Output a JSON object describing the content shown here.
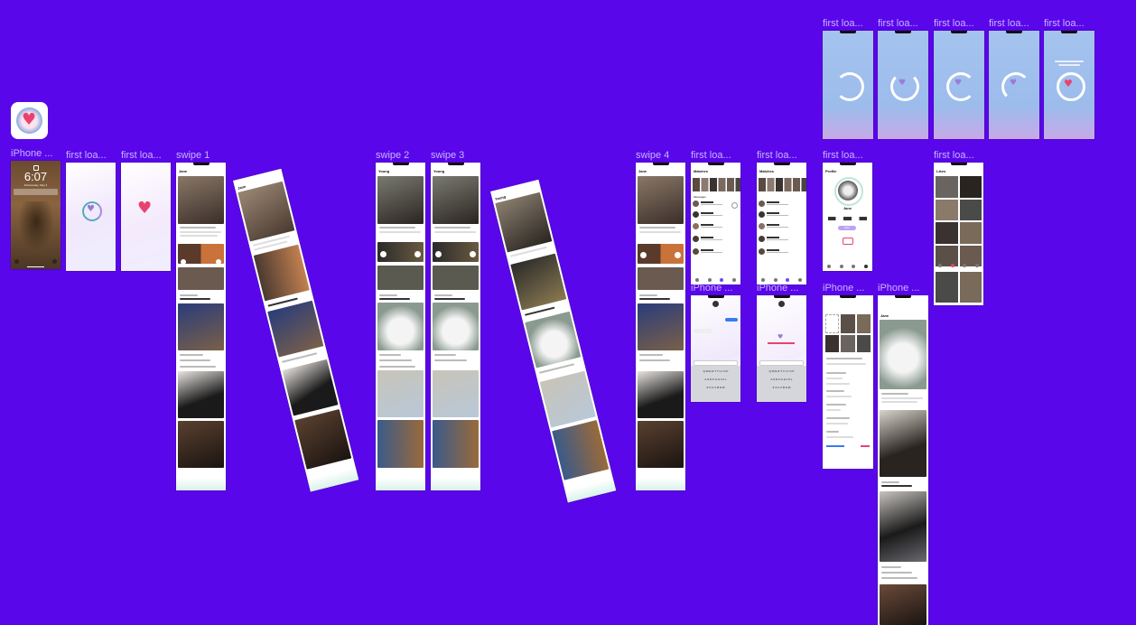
{
  "canvas": {
    "background": "#5a06ea",
    "label_color": "#c9b6ff"
  },
  "app_icon": {
    "name": "heart-app-icon",
    "glyph": "♥"
  },
  "labels": {
    "iphone_lock": "iPhone ...",
    "first_load_1": "first loa...",
    "first_load_2": "first loa...",
    "swipe_1": "swipe 1",
    "swipe_2": "swipe 2",
    "swipe_3": "swipe 3",
    "swipe_4": "swipe 4",
    "matches_1": "first loa...",
    "matches_2": "first loa...",
    "profile_frame": "first loa...",
    "likes_frame": "first loa...",
    "top_1": "first loa...",
    "top_2": "first loa...",
    "top_3": "first loa...",
    "top_4": "first loa...",
    "top_5": "first loa...",
    "chat_1": "iPhone ...",
    "chat_2": "iPhone ...",
    "settings_frame": "iPhone ...",
    "detail_frame": "iPhone ..."
  },
  "lockscreen": {
    "time": "6:07",
    "date": "Wednesday, May 3"
  },
  "swipe_screens": {
    "swipe_1_title": "Jane",
    "swipe_2_title": "Young",
    "swipe_3_title": "Young",
    "swipe_4_title": "Jane",
    "rot_a_title": "Jane",
    "rot_b_title": "Young"
  },
  "matches_screens": {
    "title_1": "Matches",
    "title_2": "Matches",
    "section": "Messages"
  },
  "profile": {
    "title": "Profile",
    "name": "Jane",
    "badge": "Edit"
  },
  "likes": {
    "title": "Likes"
  },
  "detail": {
    "title": "Jane"
  },
  "keyboard_rows": [
    "Q W E R T Y U I O P",
    "A S D F G H J K L",
    "Z X C V B N M"
  ]
}
